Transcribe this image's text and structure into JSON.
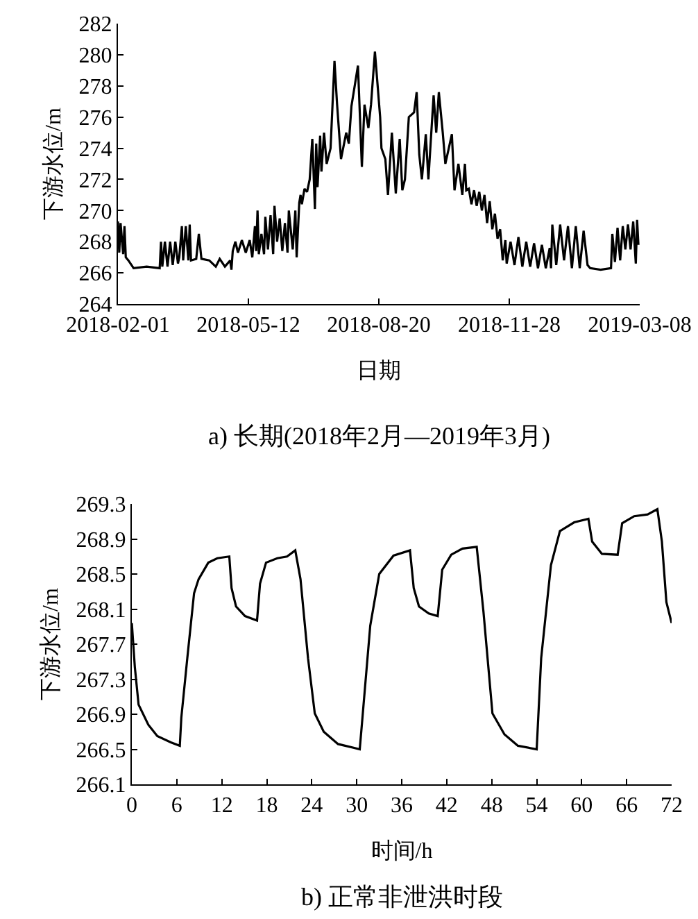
{
  "chart_data": [
    {
      "type": "line",
      "title": "a) 长期(2018年2月—2019年3月)",
      "xlabel": "日期",
      "ylabel": "下游水位/m",
      "xlim": [
        "2018-02-01",
        "2019-03-08"
      ],
      "xticks": [
        "2018-02-01",
        "2018-05-12",
        "2018-08-20",
        "2018-11-28",
        "2019-03-08"
      ],
      "ylim": [
        264,
        282
      ],
      "yticks": [
        264,
        266,
        268,
        270,
        272,
        274,
        276,
        278,
        280,
        282
      ],
      "marker": "none",
      "line_style": "solid",
      "series": [
        {
          "color": "#000000",
          "x": [
            "2018-02-01",
            "2018-02-02",
            "2018-02-03",
            "2018-02-05",
            "2018-02-06",
            "2018-02-07",
            "2018-02-09",
            "2018-02-13",
            "2018-02-23",
            "2018-03-05",
            "2018-03-06",
            "2018-03-07",
            "2018-03-09",
            "2018-03-11",
            "2018-03-13",
            "2018-03-15",
            "2018-03-17",
            "2018-03-19",
            "2018-03-20",
            "2018-03-22",
            "2018-03-23",
            "2018-03-25",
            "2018-03-27",
            "2018-03-28",
            "2018-03-29",
            "2018-04-02",
            "2018-04-04",
            "2018-04-06",
            "2018-04-12",
            "2018-04-17",
            "2018-04-20",
            "2018-04-24",
            "2018-04-28",
            "2018-04-29",
            "2018-04-30",
            "2018-05-02",
            "2018-05-04",
            "2018-05-07",
            "2018-05-10",
            "2018-05-13",
            "2018-05-15",
            "2018-05-17",
            "2018-05-18",
            "2018-05-19",
            "2018-05-20",
            "2018-05-22",
            "2018-05-24",
            "2018-05-25",
            "2018-05-27",
            "2018-05-29",
            "2018-05-31",
            "2018-06-01",
            "2018-06-03",
            "2018-06-05",
            "2018-06-07",
            "2018-06-09",
            "2018-06-11",
            "2018-06-12",
            "2018-06-15",
            "2018-06-17",
            "2018-06-18",
            "2018-06-20",
            "2018-06-21",
            "2018-06-22",
            "2018-06-24",
            "2018-06-26",
            "2018-06-28",
            "2018-06-30",
            "2018-07-02",
            "2018-07-03",
            "2018-07-04",
            "2018-07-06",
            "2018-07-07",
            "2018-07-09",
            "2018-07-11",
            "2018-07-14",
            "2018-07-17",
            "2018-07-19",
            "2018-07-22",
            "2018-07-26",
            "2018-07-28",
            "2018-07-30",
            "2018-08-04",
            "2018-08-07",
            "2018-08-09",
            "2018-08-12",
            "2018-08-14",
            "2018-08-17",
            "2018-08-21",
            "2018-08-22",
            "2018-08-25",
            "2018-08-27",
            "2018-08-30",
            "2018-09-02",
            "2018-09-05",
            "2018-09-07",
            "2018-09-09",
            "2018-09-12",
            "2018-09-16",
            "2018-09-18",
            "2018-09-20",
            "2018-09-22",
            "2018-09-25",
            "2018-09-27",
            "2018-10-01",
            "2018-10-03",
            "2018-10-05",
            "2018-10-08",
            "2018-10-10",
            "2018-10-15",
            "2018-10-17",
            "2018-10-20",
            "2018-10-23",
            "2018-10-25",
            "2018-10-26",
            "2018-10-28",
            "2018-10-30",
            "2018-11-01",
            "2018-11-03",
            "2018-11-05",
            "2018-11-07",
            "2018-11-09",
            "2018-11-11",
            "2018-11-13",
            "2018-11-15",
            "2018-11-17",
            "2018-11-19",
            "2018-11-21",
            "2018-11-23",
            "2018-11-25",
            "2018-11-26",
            "2018-11-29",
            "2018-12-02",
            "2018-12-05",
            "2018-12-08",
            "2018-12-11",
            "2018-12-14",
            "2018-12-17",
            "2018-12-20",
            "2018-12-23",
            "2018-12-26",
            "2018-12-29",
            "2018-12-30",
            "2018-12-31",
            "2019-01-03",
            "2019-01-06",
            "2019-01-09",
            "2019-01-12",
            "2019-01-15",
            "2019-01-18",
            "2019-01-21",
            "2019-01-24",
            "2019-01-27",
            "2019-01-29",
            "2019-02-06",
            "2019-02-14",
            "2019-02-15",
            "2019-02-17",
            "2019-02-19",
            "2019-02-21",
            "2019-02-23",
            "2019-02-25",
            "2019-02-27",
            "2019-03-01",
            "2019-03-03",
            "2019-03-05",
            "2019-03-06",
            "2019-03-07"
          ],
          "values": [
            269.3,
            267.3,
            269.2,
            267.2,
            269.0,
            267.0,
            266.8,
            266.3,
            266.4,
            266.3,
            268.0,
            266.4,
            268.0,
            266.4,
            268.0,
            266.5,
            268.0,
            266.6,
            267.0,
            269.0,
            266.8,
            269.0,
            266.8,
            269.1,
            266.8,
            266.9,
            268.5,
            266.9,
            266.8,
            266.4,
            266.9,
            266.4,
            266.8,
            266.2,
            267.4,
            268.0,
            267.3,
            268.1,
            267.3,
            268.1,
            267.0,
            269.0,
            267.4,
            270.0,
            267.2,
            268.5,
            267.2,
            269.6,
            267.5,
            269.7,
            267.2,
            270.3,
            268.0,
            269.5,
            267.4,
            269.2,
            267.3,
            270.0,
            267.5,
            270.0,
            267.0,
            270.5,
            271.0,
            270.4,
            271.4,
            271.2,
            272.0,
            274.6,
            270.1,
            274.3,
            271.5,
            274.8,
            272.5,
            275.0,
            273.0,
            274.0,
            279.6,
            276.8,
            273.3,
            275.0,
            274.3,
            276.7,
            279.3,
            272.8,
            276.8,
            275.3,
            276.8,
            280.2,
            276.0,
            274.0,
            273.3,
            271.0,
            275.0,
            271.1,
            274.6,
            271.3,
            272.0,
            276.0,
            276.3,
            277.6,
            273.6,
            272.0,
            274.9,
            272.0,
            277.4,
            275.0,
            277.6,
            275.0,
            273.0,
            274.9,
            271.3,
            273.0,
            271.0,
            273.0,
            271.3,
            271.4,
            270.4,
            271.3,
            270.3,
            271.2,
            270.0,
            271.0,
            269.2,
            270.6,
            268.8,
            269.8,
            268.2,
            268.8,
            266.8,
            268.1,
            266.6,
            268.0,
            266.5,
            268.3,
            266.4,
            268.0,
            266.4,
            267.9,
            266.3,
            267.8,
            266.3,
            267.6,
            266.3,
            269.1,
            266.5,
            269.1,
            266.8,
            269.0,
            266.3,
            269.0,
            266.3,
            268.7,
            266.5,
            266.3,
            266.2,
            266.3,
            268.5,
            266.7,
            268.9,
            266.8,
            269.0,
            267.5,
            269.1,
            267.5,
            269.3,
            266.6,
            269.4,
            267.8
          ]
        }
      ]
    },
    {
      "type": "line",
      "title": "b) 正常非泄洪时段",
      "xlabel": "时间/h",
      "ylabel": "下游水位/m",
      "xlim": [
        0,
        72
      ],
      "xticks": [
        0,
        6,
        12,
        18,
        24,
        30,
        36,
        42,
        48,
        54,
        60,
        66,
        72
      ],
      "ylim": [
        266.1,
        269.3
      ],
      "yticks": [
        {
          "value": 266.1,
          "label": "266.1"
        },
        {
          "value": 266.5,
          "label": "266.5"
        },
        {
          "value": 266.9,
          "label": "266.9"
        },
        {
          "value": 267.3,
          "label": "267.3"
        },
        {
          "value": 267.7,
          "label": "267.7"
        },
        {
          "value": 268.1,
          "label": "268.1"
        },
        {
          "value": 268.5,
          "label": "268.5"
        },
        {
          "value": 268.9,
          "label": "268.9"
        },
        {
          "value": 269.3,
          "label": "269.3"
        }
      ],
      "marker": "none",
      "line_style": "solid",
      "series": [
        {
          "color": "#000000",
          "x": [
            0,
            0.4,
            0.9,
            2.2,
            3.4,
            5.2,
            6.4,
            6.6,
            7.4,
            8.3,
            8.9,
            10.2,
            11.4,
            13,
            13.3,
            13.9,
            15.1,
            16.7,
            17.1,
            17.9,
            19.4,
            20.7,
            21.8,
            22.5,
            23.5,
            24.4,
            25.6,
            27.5,
            30.4,
            30.7,
            31.8,
            33,
            34.9,
            37.1,
            37.6,
            38.3,
            39.6,
            40.8,
            41.4,
            42.6,
            44.1,
            46,
            46.9,
            48.1,
            49.7,
            51.5,
            54,
            54.6,
            55.9,
            57.1,
            59,
            60.9,
            61.4,
            62.7,
            64.8,
            65.4,
            67,
            68.8,
            70.1,
            70.7,
            71.3,
            72
          ],
          "values": [
            267.94,
            267.44,
            267.01,
            266.78,
            266.65,
            266.58,
            266.54,
            266.86,
            267.54,
            268.28,
            268.44,
            268.63,
            268.68,
            268.7,
            268.34,
            268.13,
            268.02,
            267.97,
            268.39,
            268.63,
            268.68,
            268.7,
            268.77,
            268.44,
            267.54,
            266.91,
            266.7,
            266.56,
            266.5,
            266.8,
            267.91,
            268.5,
            268.71,
            268.77,
            268.34,
            268.13,
            268.05,
            268.02,
            268.55,
            268.72,
            268.79,
            268.81,
            268.07,
            266.91,
            266.67,
            266.54,
            266.5,
            267.54,
            268.6,
            268.99,
            269.09,
            269.13,
            268.87,
            268.73,
            268.72,
            269.08,
            269.16,
            269.18,
            269.24,
            268.87,
            268.18,
            267.94
          ]
        }
      ]
    }
  ]
}
